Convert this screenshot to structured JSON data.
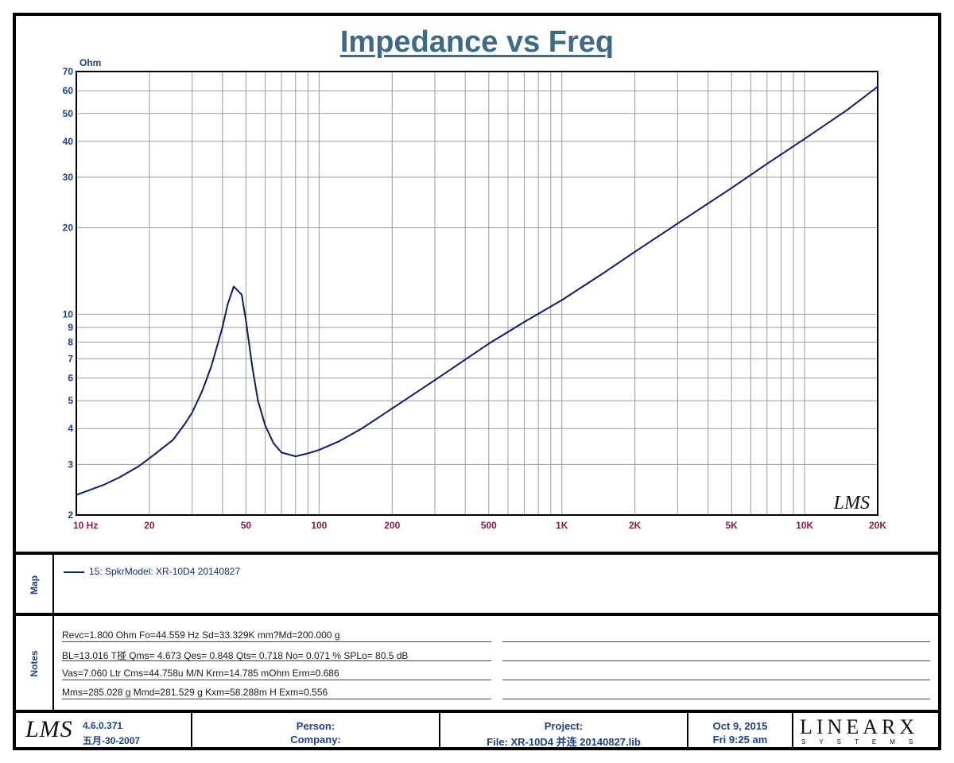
{
  "chart_data": {
    "type": "line",
    "title": "Impedance vs Freq",
    "ylabel": "Ohm",
    "xscale": "log",
    "yscale": "log",
    "xlim": [
      10,
      20000
    ],
    "ylim": [
      2,
      70
    ],
    "x_ticks": [
      {
        "v": 10,
        "label": "10  Hz"
      },
      {
        "v": 20,
        "label": "20"
      },
      {
        "v": 50,
        "label": "50"
      },
      {
        "v": 100,
        "label": "100"
      },
      {
        "v": 200,
        "label": "200"
      },
      {
        "v": 500,
        "label": "500"
      },
      {
        "v": 1000,
        "label": "1K"
      },
      {
        "v": 2000,
        "label": "2K"
      },
      {
        "v": 5000,
        "label": "5K"
      },
      {
        "v": 10000,
        "label": "10K"
      },
      {
        "v": 20000,
        "label": "20K"
      }
    ],
    "y_ticks": [
      {
        "v": 2,
        "label": "2"
      },
      {
        "v": 3,
        "label": "3"
      },
      {
        "v": 4,
        "label": "4"
      },
      {
        "v": 5,
        "label": "5"
      },
      {
        "v": 6,
        "label": "6"
      },
      {
        "v": 7,
        "label": "7"
      },
      {
        "v": 8,
        "label": "8"
      },
      {
        "v": 9,
        "label": "9"
      },
      {
        "v": 10,
        "label": "10"
      },
      {
        "v": 20,
        "label": "20"
      },
      {
        "v": 30,
        "label": "30"
      },
      {
        "v": 40,
        "label": "40"
      },
      {
        "v": 50,
        "label": "50"
      },
      {
        "v": 60,
        "label": "60"
      },
      {
        "v": 70,
        "label": "70"
      }
    ],
    "grid": true,
    "series": [
      {
        "name": "15: SpkrModel: XR-10D4   20140827",
        "color": "#0d1a6e",
        "x": [
          10,
          13,
          15,
          18,
          20,
          25,
          28,
          30,
          33,
          36,
          40,
          42,
          44.5,
          48,
          50,
          53,
          56,
          60,
          65,
          70,
          80,
          90,
          100,
          120,
          150,
          200,
          300,
          500,
          700,
          1000,
          1500,
          2000,
          3000,
          5000,
          7000,
          10000,
          15000,
          20000
        ],
        "y": [
          2.35,
          2.55,
          2.7,
          2.95,
          3.15,
          3.65,
          4.15,
          4.55,
          5.4,
          6.6,
          9.0,
          10.8,
          12.5,
          11.7,
          9.5,
          6.6,
          5.0,
          4.1,
          3.55,
          3.3,
          3.2,
          3.28,
          3.37,
          3.6,
          4.0,
          4.7,
          5.9,
          7.9,
          9.4,
          11.2,
          14.0,
          16.5,
          20.7,
          27.5,
          33.4,
          40.8,
          51.5,
          62.0
        ]
      }
    ]
  },
  "watermark": "LMS",
  "map": {
    "label": "Map",
    "entry": "15: SpkrModel: XR-10D4   20140827"
  },
  "notes": {
    "label": "Notes",
    "lines": [
      "Revc=1.800 Ohm  Fo=44.559 Hz  Sd=33.329K mm?Md=200.000 g",
      "BL=13.016 T掽  Qms= 4.673  Qes= 0.848  Qts= 0.718  No= 0.071 %  SPLo= 80.5 dB",
      "Vas=7.060 Ltr  Cms=44.758u M/N  Krm=14.785 mOhm  Erm=0.686",
      "Mms=285.028 g  Mmd=281.529 g  Kxm=58.288m H  Exm=0.556"
    ]
  },
  "footer": {
    "logo": "LMS",
    "version": "4.6.0.371",
    "version_date": "五月-30-2007",
    "person_label": "Person:",
    "company_label": "Company:",
    "project_label": "Project:",
    "file_label": "File: XR-10D4 并连 20140827.lib",
    "date": "Oct  9, 2015",
    "time": "Fri  9:25 am",
    "brand": "LINEARX",
    "brand_sub": "SYSTEMS"
  }
}
